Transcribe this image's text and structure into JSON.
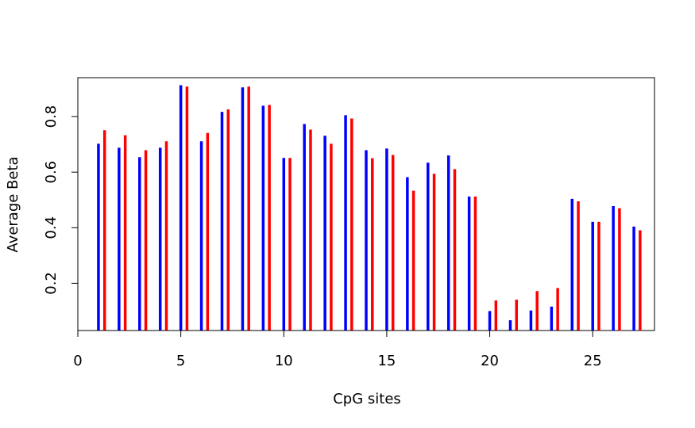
{
  "chart_data": {
    "type": "bar",
    "xlabel": "CpG sites",
    "ylabel": "Average Beta",
    "xlim": [
      0,
      28
    ],
    "ylim": [
      0.03,
      0.94
    ],
    "x_ticks": [
      0,
      5,
      10,
      15,
      20,
      25
    ],
    "y_ticks": [
      0.2,
      0.4,
      0.6,
      0.8
    ],
    "x": [
      1,
      2,
      3,
      4,
      5,
      6,
      7,
      8,
      9,
      10,
      11,
      12,
      13,
      14,
      15,
      16,
      17,
      18,
      19,
      20,
      21,
      22,
      23,
      24,
      25,
      26,
      27
    ],
    "series": [
      {
        "color": "#0000ff",
        "values": [
          0.702,
          0.688,
          0.654,
          0.688,
          0.913,
          0.711,
          0.817,
          0.905,
          0.839,
          0.651,
          0.773,
          0.731,
          0.805,
          0.679,
          0.685,
          0.582,
          0.634,
          0.66,
          0.512,
          0.1,
          0.067,
          0.102,
          0.116,
          0.504,
          0.421,
          0.478,
          0.404
        ]
      },
      {
        "color": "#ff0000",
        "values": [
          0.751,
          0.733,
          0.679,
          0.711,
          0.908,
          0.741,
          0.826,
          0.908,
          0.842,
          0.651,
          0.753,
          0.702,
          0.793,
          0.65,
          0.662,
          0.533,
          0.594,
          0.611,
          0.512,
          0.138,
          0.141,
          0.172,
          0.183,
          0.495,
          0.421,
          0.47,
          0.391
        ]
      }
    ],
    "grid": false,
    "legend": "none"
  }
}
